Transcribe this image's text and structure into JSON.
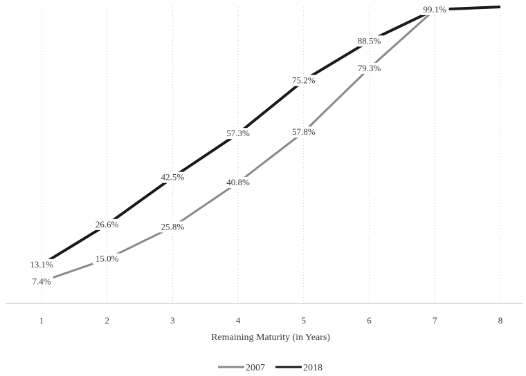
{
  "chart_data": {
    "type": "line",
    "title": "",
    "xlabel": "Remaining Maturity (in Years)",
    "ylabel": "",
    "x": [
      1,
      2,
      3,
      4,
      5,
      6,
      7,
      8
    ],
    "x_tick_labels": [
      "1",
      "2",
      "3",
      "4",
      "5",
      "6",
      "7",
      "8"
    ],
    "ylim": [
      0,
      100
    ],
    "grid": "vertical dotted",
    "legend_position": "bottom-center",
    "series": [
      {
        "name": "2007",
        "color": "#8a8a8a",
        "values": [
          7.4,
          15.0,
          25.8,
          40.8,
          57.8,
          79.3,
          99.1,
          100
        ],
        "labels": [
          "7.4%",
          "15.0%",
          "25.8%",
          "40.8%",
          "57.8%",
          "79.3%",
          "",
          ""
        ]
      },
      {
        "name": "2018",
        "color": "#1a1a1a",
        "values": [
          13.1,
          26.6,
          42.5,
          57.3,
          75.2,
          88.5,
          99.1,
          100
        ],
        "labels": [
          "13.1%",
          "26.6%",
          "42.5%",
          "57.3%",
          "75.2%",
          "88.5%",
          "99.1%",
          ""
        ]
      }
    ]
  }
}
